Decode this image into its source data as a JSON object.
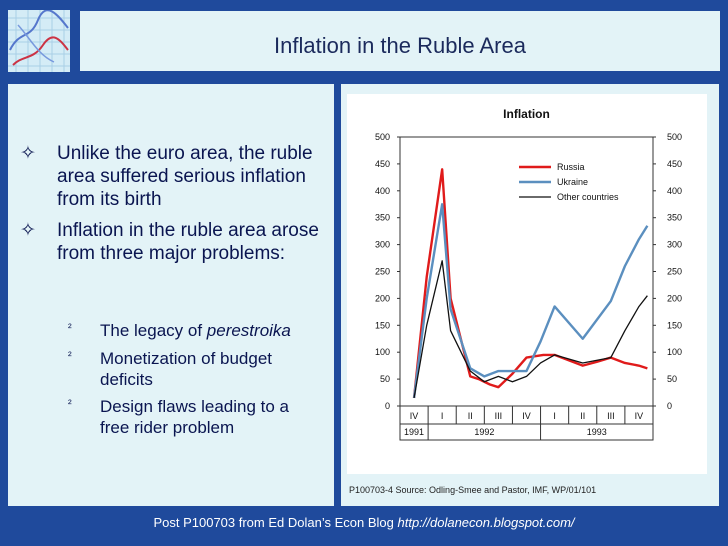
{
  "slide": {
    "title": "Inflation in the Ruble Area",
    "bullets": [
      {
        "text": "Unlike the euro area, the ruble area suffered serious inflation from its birth"
      },
      {
        "text": "Inflation in the ruble area arose from three major problems:"
      }
    ],
    "sub_bullets": [
      {
        "text": "The legacy of ",
        "italic": "perestroika"
      },
      {
        "text": "Monetization of budget deficits",
        "italic": ""
      },
      {
        "text": "Design flaws leading to a free rider problem",
        "italic": ""
      }
    ],
    "bullet_symbol": "✧",
    "sub_symbol": "²",
    "footer_text": "Post P100703 from Ed Dolan’s Econ Blog ",
    "footer_url": "http://dolanecon.blogspot.com/",
    "source": "P100703-4 Source: Odling-Smee and Pastor, IMF, WP/01/101"
  },
  "colors": {
    "background": "#1f4a9c",
    "panel": "#e3f3f7",
    "russia": "#e01b1b",
    "ukraine": "#5b8fbf",
    "other": "#111111"
  },
  "chart_data": {
    "type": "line",
    "title": "Inflation",
    "categories": [
      "IV",
      "I",
      "II",
      "III",
      "IV",
      "I",
      "II",
      "III",
      "IV"
    ],
    "years": [
      {
        "label": "1991",
        "span": [
          0,
          0
        ]
      },
      {
        "label": "1992",
        "span": [
          1,
          4
        ]
      },
      {
        "label": "1993",
        "span": [
          5,
          8
        ]
      }
    ],
    "ylim": [
      0,
      500
    ],
    "yticks": [
      0,
      50,
      100,
      150,
      200,
      250,
      300,
      350,
      400,
      450,
      500
    ],
    "yticks_right": [
      0,
      50,
      100,
      150,
      200,
      250,
      300,
      350,
      400,
      450,
      500
    ],
    "legend_position": "top-right",
    "series": [
      {
        "name": "Russia",
        "color": "#e01b1b",
        "x": [
          0,
          0.45,
          1,
          1.3,
          2,
          2.3,
          2.7,
          3,
          3.5,
          4,
          4.6,
          5,
          6,
          6.5,
          7,
          7.5,
          8,
          8.3
        ],
        "values": [
          15,
          240,
          440,
          200,
          55,
          50,
          40,
          35,
          60,
          90,
          95,
          95,
          75,
          82,
          90,
          80,
          75,
          70
        ]
      },
      {
        "name": "Ukraine",
        "color": "#5b8fbf",
        "x": [
          0,
          0.45,
          1,
          1.3,
          2,
          2.5,
          3,
          3.5,
          4,
          4.5,
          5,
          6,
          7,
          7.5,
          8,
          8.3
        ],
        "values": [
          15,
          200,
          375,
          180,
          70,
          55,
          65,
          65,
          65,
          120,
          185,
          125,
          195,
          260,
          310,
          335
        ]
      },
      {
        "name": "Other countries",
        "color": "#111111",
        "x": [
          0,
          0.45,
          1,
          1.3,
          2,
          2.5,
          3,
          3.5,
          4,
          4.5,
          5,
          6,
          7,
          7.5,
          8,
          8.3
        ],
        "values": [
          15,
          150,
          270,
          140,
          65,
          45,
          55,
          45,
          55,
          80,
          95,
          80,
          90,
          140,
          185,
          205
        ]
      }
    ]
  }
}
